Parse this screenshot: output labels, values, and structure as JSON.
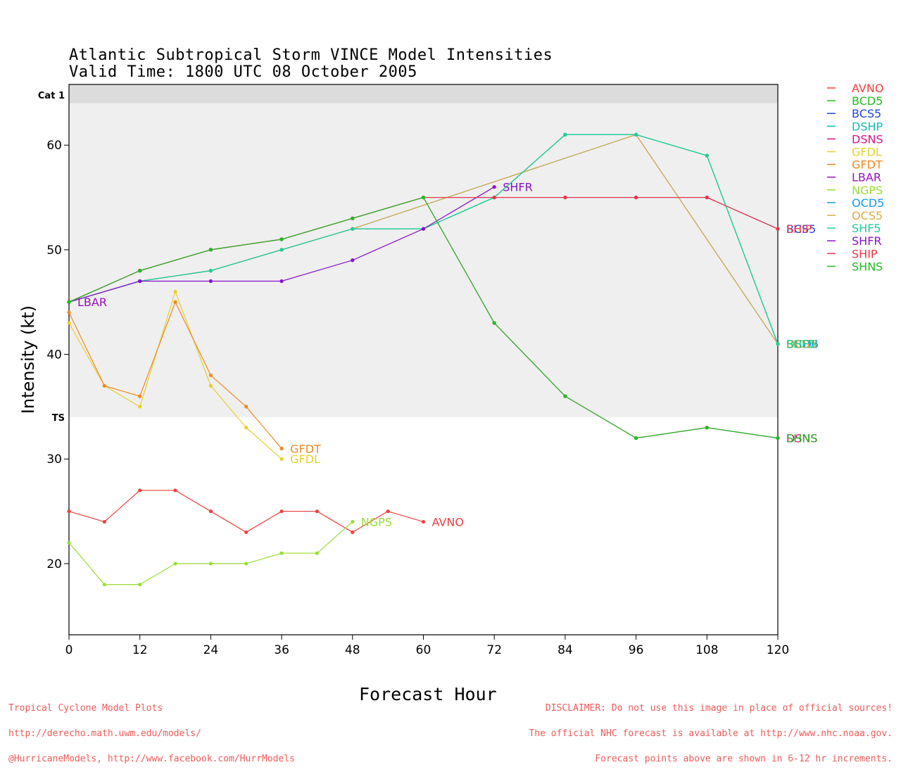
{
  "header": {
    "title_line1": "Atlantic Subtropical Storm VINCE Model Intensities",
    "title_line2": "Valid Time: 1800 UTC 08 October 2005"
  },
  "footer": {
    "left": [
      "Tropical Cyclone Model Plots",
      "http://derecho.math.uwm.edu/models/",
      "@HurricaneModels, http://www.facebook.com/HurrModels"
    ],
    "right": [
      "DISCLAIMER: Do not use this image in place of official sources!",
      "The official NHC forecast is available at http://www.nhc.noaa.gov.",
      "Forecast points above are shown in 6-12 hr increments."
    ]
  },
  "chart_data": {
    "type": "line",
    "xlabel": "Forecast Hour",
    "ylabel": "Intensity (kt)",
    "xlim": [
      0,
      120
    ],
    "ylim": [
      13.2,
      65.8
    ],
    "x_ticks": [
      0,
      12,
      24,
      36,
      48,
      60,
      72,
      84,
      96,
      108,
      120
    ],
    "y_ticks": [
      20,
      30,
      40,
      50,
      60
    ],
    "bands": [
      {
        "label": "TS",
        "from": 34,
        "to": 64,
        "color": "#efefef"
      },
      {
        "label": "Cat 1",
        "from": 64,
        "to": 65.8,
        "color": "#dcdcdc"
      }
    ],
    "legend_position": "right",
    "series": [
      {
        "name": "AVNO",
        "color": "#ef4040",
        "end_label": "AVNO",
        "points": [
          [
            0,
            25
          ],
          [
            6,
            24
          ],
          [
            12,
            27
          ],
          [
            18,
            27
          ],
          [
            24,
            25
          ],
          [
            30,
            23
          ],
          [
            36,
            25
          ],
          [
            42,
            25
          ],
          [
            48,
            23
          ],
          [
            54,
            25
          ],
          [
            60,
            24
          ]
        ]
      },
      {
        "name": "BCD5",
        "color": "#22bb22",
        "end_label": "BCD5",
        "points": [
          [
            0,
            45
          ],
          [
            12,
            47
          ],
          [
            24,
            48
          ],
          [
            36,
            50
          ],
          [
            48,
            52
          ],
          [
            60,
            52
          ],
          [
            72,
            55
          ],
          [
            84,
            61
          ],
          [
            96,
            61
          ],
          [
            108,
            59
          ],
          [
            120,
            41
          ]
        ]
      },
      {
        "name": "BCS5",
        "color": "#2244dd",
        "end_label": "BCS5",
        "points": [
          [
            0,
            45
          ],
          [
            12,
            48
          ],
          [
            24,
            50
          ],
          [
            36,
            51
          ],
          [
            48,
            53
          ],
          [
            60,
            55
          ],
          [
            72,
            55
          ],
          [
            84,
            55
          ],
          [
            96,
            55
          ],
          [
            108,
            55
          ],
          [
            120,
            52
          ]
        ]
      },
      {
        "name": "DSHP",
        "color": "#11bbbb",
        "end_label": "DSHP",
        "points": [
          [
            0,
            45
          ],
          [
            12,
            47
          ],
          [
            24,
            48
          ],
          [
            36,
            50
          ],
          [
            48,
            52
          ],
          [
            60,
            52
          ],
          [
            72,
            55
          ],
          [
            84,
            61
          ],
          [
            96,
            61
          ],
          [
            108,
            59
          ],
          [
            120,
            41
          ]
        ]
      },
      {
        "name": "DSNS",
        "color": "#dd1188",
        "end_label": "DSNS",
        "points": [
          [
            0,
            45
          ],
          [
            12,
            48
          ],
          [
            24,
            50
          ],
          [
            36,
            51
          ],
          [
            48,
            53
          ],
          [
            60,
            55
          ],
          [
            72,
            43
          ],
          [
            84,
            36
          ],
          [
            96,
            32
          ],
          [
            108,
            33
          ],
          [
            120,
            32
          ]
        ]
      },
      {
        "name": "GFDL",
        "color": "#e6d02a",
        "end_label": "GFDL",
        "points": [
          [
            0,
            43
          ],
          [
            6,
            37
          ],
          [
            12,
            35
          ],
          [
            18,
            46
          ],
          [
            24,
            37
          ],
          [
            30,
            33
          ],
          [
            36,
            30
          ]
        ]
      },
      {
        "name": "GFDT",
        "color": "#ee8822",
        "end_label": "GFDT",
        "points": [
          [
            0,
            44
          ],
          [
            6,
            37
          ],
          [
            12,
            36
          ],
          [
            18,
            45
          ],
          [
            24,
            38
          ],
          [
            30,
            35
          ],
          [
            36,
            31
          ]
        ]
      },
      {
        "name": "LBAR",
        "color": "#9911bb",
        "end_label": "LBAR",
        "points": [
          [
            0,
            45
          ]
        ]
      },
      {
        "name": "NGPS",
        "color": "#99dd33",
        "end_label": "NGPS",
        "points": [
          [
            0,
            22
          ],
          [
            6,
            18
          ],
          [
            12,
            18
          ],
          [
            18,
            20
          ],
          [
            24,
            20
          ],
          [
            30,
            20
          ],
          [
            36,
            21
          ],
          [
            42,
            21
          ],
          [
            48,
            24
          ]
        ]
      },
      {
        "name": "OCD5",
        "color": "#1199ee",
        "end_label": "OCD5",
        "points": [
          [
            0,
            45
          ],
          [
            12,
            47
          ],
          [
            24,
            48
          ],
          [
            36,
            50
          ],
          [
            48,
            52
          ],
          [
            96,
            61
          ],
          [
            120,
            41
          ]
        ]
      },
      {
        "name": "OCS5",
        "color": "#ddaa44",
        "end_label": "OCS5",
        "points": [
          [
            0,
            45
          ],
          [
            12,
            47
          ],
          [
            24,
            48
          ],
          [
            36,
            50
          ],
          [
            48,
            52
          ],
          [
            96,
            61
          ],
          [
            120,
            41
          ]
        ]
      },
      {
        "name": "SHF5",
        "color": "#22cc99",
        "end_label": "SHF5",
        "points": [
          [
            0,
            45
          ],
          [
            12,
            47
          ],
          [
            24,
            48
          ],
          [
            36,
            50
          ],
          [
            48,
            52
          ],
          [
            60,
            52
          ],
          [
            72,
            55
          ],
          [
            84,
            61
          ],
          [
            96,
            61
          ],
          [
            108,
            59
          ],
          [
            120,
            41
          ]
        ]
      },
      {
        "name": "SHFR",
        "color": "#8811cc",
        "end_label": "SHFR",
        "points": [
          [
            0,
            45
          ],
          [
            12,
            47
          ],
          [
            24,
            47
          ],
          [
            36,
            47
          ],
          [
            48,
            49
          ],
          [
            60,
            52
          ],
          [
            72,
            56
          ]
        ]
      },
      {
        "name": "SHIP",
        "color": "#ee3344",
        "end_label": "SHIP",
        "points": [
          [
            0,
            45
          ],
          [
            12,
            48
          ],
          [
            24,
            50
          ],
          [
            36,
            51
          ],
          [
            48,
            53
          ],
          [
            60,
            55
          ],
          [
            72,
            55
          ],
          [
            84,
            55
          ],
          [
            96,
            55
          ],
          [
            108,
            55
          ],
          [
            120,
            52
          ]
        ]
      },
      {
        "name": "SHNS",
        "color": "#22bb22",
        "end_label": "SHNS",
        "points": [
          [
            0,
            45
          ],
          [
            12,
            48
          ],
          [
            24,
            50
          ],
          [
            36,
            51
          ],
          [
            48,
            53
          ],
          [
            60,
            55
          ],
          [
            72,
            43
          ],
          [
            84,
            36
          ],
          [
            96,
            32
          ],
          [
            108,
            33
          ],
          [
            120,
            32
          ]
        ]
      }
    ]
  }
}
